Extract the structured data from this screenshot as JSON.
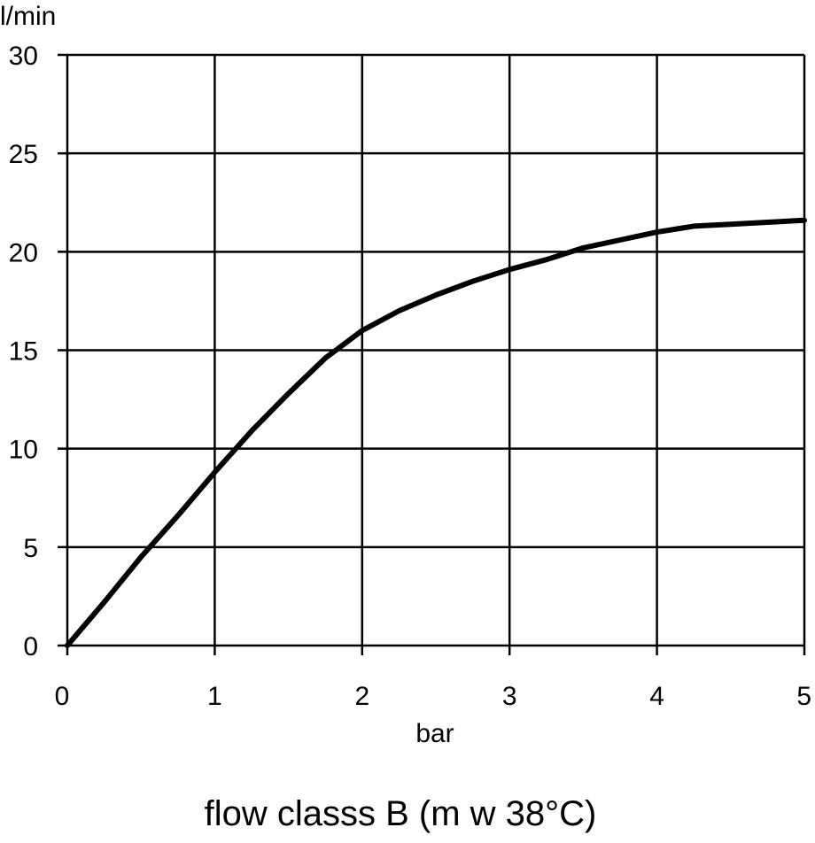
{
  "chart_data": {
    "type": "line",
    "title": "",
    "caption": "flow classs B (m w 38°C)",
    "xlabel": "bar",
    "ylabel": "l/min",
    "xlim": [
      0,
      5
    ],
    "ylim": [
      0,
      30
    ],
    "x_ticks": [
      "0",
      "1",
      "2",
      "3",
      "4",
      "5"
    ],
    "y_ticks": [
      "0",
      "5",
      "10",
      "15",
      "20",
      "25",
      "30"
    ],
    "grid": true,
    "legend": "none",
    "line_color": "#000000",
    "series": [
      {
        "x": [
          0,
          0.25,
          0.5,
          0.75,
          1.0,
          1.25,
          1.5,
          1.75,
          2.0,
          2.25,
          2.5,
          2.75,
          3.0,
          3.25,
          3.5,
          3.75,
          4.0,
          4.25,
          4.5,
          4.75,
          5.0
        ],
        "values": [
          0,
          2.2,
          4.5,
          6.6,
          8.8,
          10.9,
          12.8,
          14.6,
          16.0,
          17.0,
          17.8,
          18.5,
          19.1,
          19.6,
          20.2,
          20.6,
          21.0,
          21.3,
          21.4,
          21.5,
          21.6
        ]
      }
    ]
  }
}
